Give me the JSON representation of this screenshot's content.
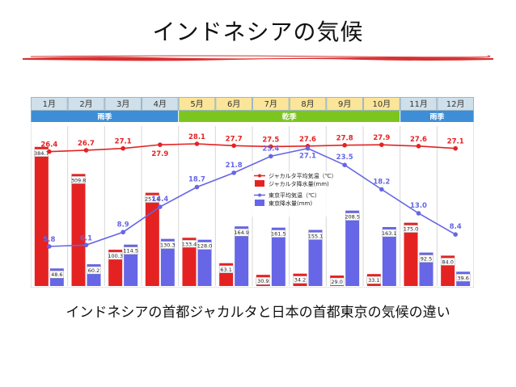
{
  "page": {
    "title": "インドネシアの気候",
    "caption": "インドネシアの首都ジャカルタと日本の首都東京の気候の違い"
  },
  "colors": {
    "header_bg": "#cfe0ea",
    "header_border": "#9fb7c6",
    "highlight_month_bg": "#fbe59a",
    "rainy_band": "#3d8ed6",
    "dry_band": "#7cc51e",
    "jakarta": "#e52222",
    "tokyo": "#6666e6",
    "grid": "#d8d8d8",
    "brush": "#d83030"
  },
  "chart_data": {
    "type": "bar",
    "months": [
      "1月",
      "2月",
      "3月",
      "4月",
      "5月",
      "6月",
      "7月",
      "8月",
      "9月",
      "10月",
      "11月",
      "12月"
    ],
    "highlight_months": [
      4,
      5,
      6,
      7,
      8,
      9
    ],
    "seasons": [
      {
        "label": "雨季",
        "start": 0,
        "end": 3
      },
      {
        "label": "乾季",
        "start": 4,
        "end": 9
      },
      {
        "label": "雨季",
        "start": 10,
        "end": 11
      }
    ],
    "series": [
      {
        "name": "ジャカルタ平均気温（℃）",
        "kind": "line",
        "color": "#e52222",
        "values": [
          26.4,
          26.7,
          27.1,
          27.9,
          28.1,
          27.7,
          27.5,
          27.6,
          27.8,
          27.9,
          27.6,
          27.1
        ],
        "labels": [
          "26.4",
          "26.7",
          "27.1",
          "27.9",
          "28.1",
          "27.7",
          "27.5",
          "27.6",
          "27.8",
          "27.9",
          "27.6",
          "27.1"
        ]
      },
      {
        "name": "ジャカルタ降水量(mm)",
        "kind": "bar",
        "color": "#e52222",
        "values": [
          384.7,
          309.8,
          100.3,
          257.8,
          133.4,
          63.1,
          30.9,
          34.2,
          29.0,
          33.1,
          175.0,
          84.0
        ],
        "labels": [
          "384.7",
          "309.8",
          "100.3",
          "257.8",
          "133.4",
          "63.1",
          "30.9",
          "34.2",
          "29.0",
          "33.1",
          "175.0",
          "84.0"
        ]
      },
      {
        "name": "東京平均気温（℃）",
        "kind": "line",
        "color": "#6666e6",
        "values": [
          5.8,
          6.1,
          8.9,
          14.4,
          18.7,
          21.8,
          25.4,
          27.1,
          23.5,
          18.2,
          13.0,
          8.4
        ],
        "labels": [
          "5.8",
          "6.1",
          "8.9",
          "14.4",
          "18.7",
          "21.8",
          "25.4",
          "27.1",
          "23.5",
          "18.2",
          "13.0",
          "8.4"
        ]
      },
      {
        "name": "東京降水量(mm)",
        "kind": "bar",
        "color": "#6666e6",
        "values": [
          48.6,
          60.2,
          114.5,
          130.3,
          128.0,
          164.9,
          161.5,
          155.1,
          208.5,
          163.1,
          92.5,
          39.6
        ],
        "labels": [
          "48.6",
          "60.2",
          "114.5",
          "130.3",
          "128.0",
          "164.9",
          "161.5",
          "155.1",
          "208.5",
          "163.1",
          "92.5",
          "39.6"
        ]
      }
    ],
    "legend_placement": "right-center",
    "grid": true
  }
}
